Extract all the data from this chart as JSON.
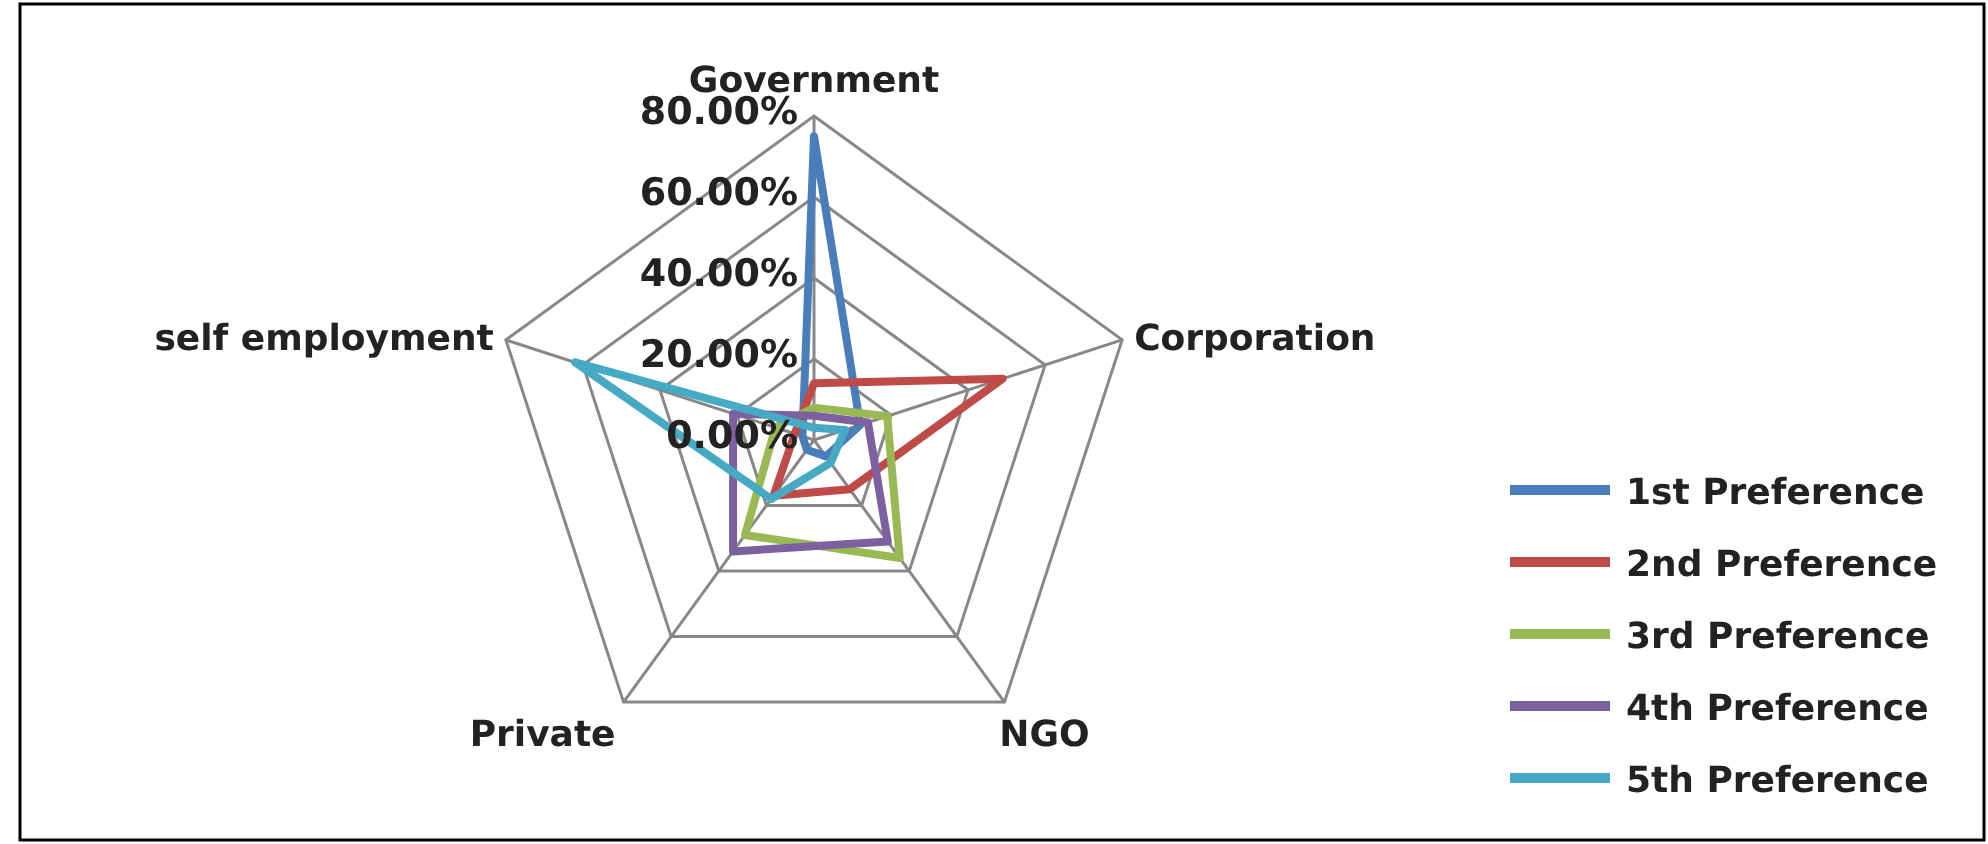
{
  "chart_data": {
    "type": "radar",
    "categories": [
      "Government",
      "Corporation",
      "NGO",
      "Private",
      "self employment"
    ],
    "series": [
      {
        "name": "1st Preference",
        "color": "#4a7ebb",
        "values": [
          75,
          12,
          5,
          3,
          3
        ]
      },
      {
        "name": "2nd Preference",
        "color": "#be4b48",
        "values": [
          14,
          49,
          15,
          17,
          5
        ]
      },
      {
        "name": "3rd Preference",
        "color": "#98b954",
        "values": [
          8,
          19,
          36,
          29,
          10
        ]
      },
      {
        "name": "4th Preference",
        "color": "#7d60a0",
        "values": [
          6,
          14,
          31,
          34,
          21
        ]
      },
      {
        "name": "5th Preference",
        "color": "#46aac5",
        "values": [
          3,
          8,
          7,
          18,
          62
        ]
      }
    ],
    "ylim": [
      0,
      80
    ],
    "yticks": [
      {
        "value": 0,
        "label": "0.00%"
      },
      {
        "value": 20,
        "label": "20.00%"
      },
      {
        "value": 40,
        "label": "40.00%"
      },
      {
        "value": 60,
        "label": "60.00%"
      },
      {
        "value": 80,
        "label": "80.00%"
      }
    ],
    "grid": true,
    "legend": "right"
  }
}
